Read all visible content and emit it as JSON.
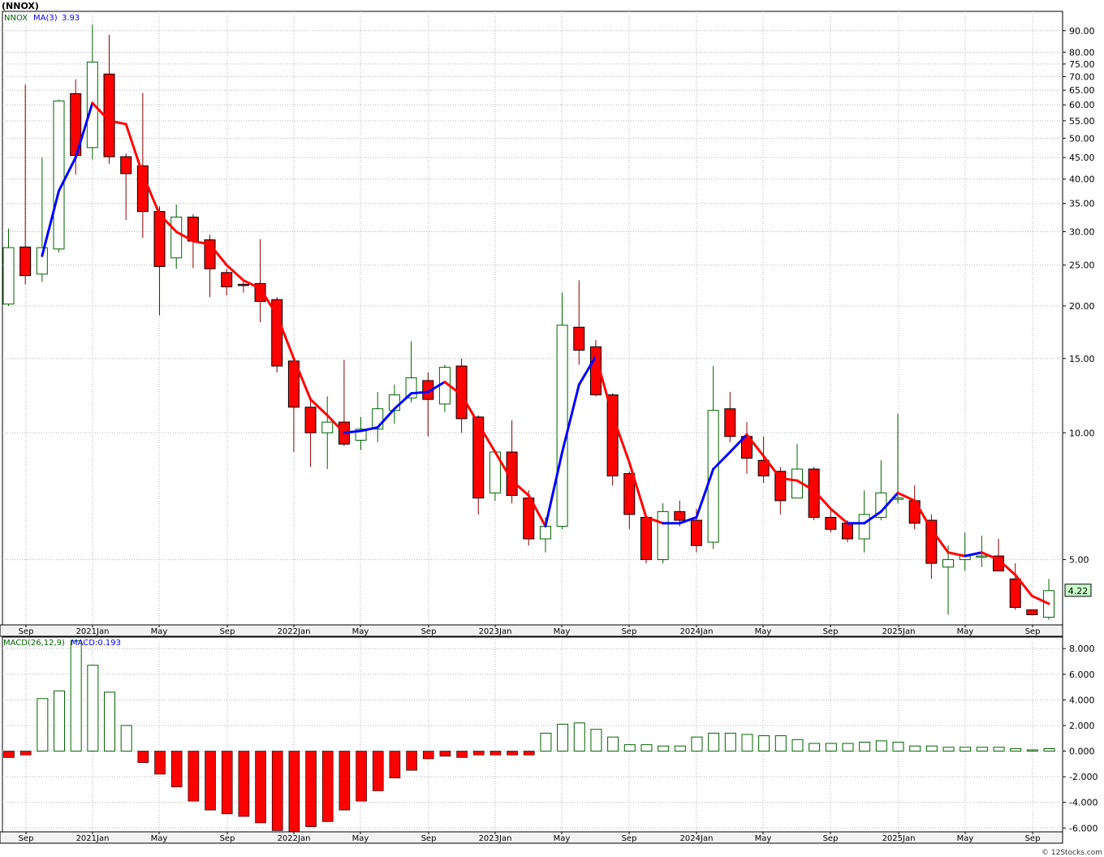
{
  "title": "(NNOX)",
  "watermark": "© 12Stocks.com",
  "colors": {
    "down": "#ff0000",
    "up_outline": "#006400",
    "ma_up": "#0000ff",
    "ma_down": "#ff0000",
    "grid": "#b4b4b4",
    "price_label_bg": "#c8ffc8"
  },
  "chart_data": [
    {
      "type": "candlestick",
      "legend": {
        "symbol": "NNOX",
        "ma_label": "MA(3)",
        "ma_value": "3.93"
      },
      "scale": "log",
      "ylim": [
        3.5,
        100
      ],
      "y_ticks": [
        "90.00",
        "80.00",
        "75.00",
        "70.00",
        "65.00",
        "60.00",
        "55.00",
        "50.00",
        "45.00",
        "40.00",
        "35.00",
        "30.00",
        "25.00",
        "20.00",
        "15.00",
        "10.00",
        "5.00"
      ],
      "last_price_label": "4.22",
      "x_ticks": [
        "Sep",
        "2021Jan",
        "May",
        "Sep",
        "2022Jan",
        "May",
        "Sep",
        "2023Jan",
        "May",
        "Sep",
        "2024Jan",
        "May",
        "Sep",
        "2025Jan",
        "May",
        "Sep"
      ],
      "candles": [
        {
          "o": 20.2,
          "h": 30.5,
          "l": 20.0,
          "c": 27.5
        },
        {
          "o": 27.6,
          "h": 67.0,
          "l": 22.5,
          "c": 23.6
        },
        {
          "o": 23.8,
          "h": 45.0,
          "l": 22.8,
          "c": 27.5
        },
        {
          "o": 27.3,
          "h": 61.7,
          "l": 26.8,
          "c": 61.3
        },
        {
          "o": 63.8,
          "h": 69.0,
          "l": 41.0,
          "c": 45.5
        },
        {
          "o": 47.5,
          "h": 93.0,
          "l": 44.5,
          "c": 75.8
        },
        {
          "o": 71.0,
          "h": 88.0,
          "l": 43.5,
          "c": 45.2
        },
        {
          "o": 45.2,
          "h": 46.0,
          "l": 32.0,
          "c": 41.2
        },
        {
          "o": 43.0,
          "h": 64.0,
          "l": 29.0,
          "c": 33.5
        },
        {
          "o": 33.5,
          "h": 34.5,
          "l": 19.0,
          "c": 24.8
        },
        {
          "o": 26.0,
          "h": 34.8,
          "l": 24.5,
          "c": 32.5
        },
        {
          "o": 32.5,
          "h": 33.0,
          "l": 24.6,
          "c": 28.5
        },
        {
          "o": 28.7,
          "h": 29.5,
          "l": 21.0,
          "c": 24.5
        },
        {
          "o": 24.0,
          "h": 24.5,
          "l": 21.2,
          "c": 22.2
        },
        {
          "o": 22.5,
          "h": 23.0,
          "l": 21.5,
          "c": 22.4
        },
        {
          "o": 22.6,
          "h": 28.8,
          "l": 18.3,
          "c": 20.5
        },
        {
          "o": 20.7,
          "h": 21.0,
          "l": 13.9,
          "c": 14.4
        },
        {
          "o": 14.8,
          "h": 15.0,
          "l": 9.0,
          "c": 11.5
        },
        {
          "o": 11.5,
          "h": 12.0,
          "l": 8.3,
          "c": 10.0
        },
        {
          "o": 10.0,
          "h": 12.2,
          "l": 8.2,
          "c": 10.6
        },
        {
          "o": 10.6,
          "h": 14.9,
          "l": 9.3,
          "c": 9.4
        },
        {
          "o": 9.6,
          "h": 10.9,
          "l": 9.1,
          "c": 10.2
        },
        {
          "o": 10.2,
          "h": 12.5,
          "l": 9.5,
          "c": 11.4
        },
        {
          "o": 11.3,
          "h": 13.0,
          "l": 10.5,
          "c": 12.3
        },
        {
          "o": 12.1,
          "h": 16.5,
          "l": 11.8,
          "c": 13.5
        },
        {
          "o": 13.3,
          "h": 13.9,
          "l": 9.8,
          "c": 12.0
        },
        {
          "o": 11.7,
          "h": 14.5,
          "l": 11.2,
          "c": 14.3
        },
        {
          "o": 14.4,
          "h": 15.0,
          "l": 10.0,
          "c": 10.8
        },
        {
          "o": 10.9,
          "h": 11.0,
          "l": 6.4,
          "c": 7.0
        },
        {
          "o": 7.2,
          "h": 9.0,
          "l": 6.9,
          "c": 9.0
        },
        {
          "o": 9.0,
          "h": 10.7,
          "l": 6.8,
          "c": 7.1
        },
        {
          "o": 7.0,
          "h": 7.3,
          "l": 5.4,
          "c": 5.6
        },
        {
          "o": 5.6,
          "h": 6.3,
          "l": 5.2,
          "c": 6.0
        },
        {
          "o": 6.0,
          "h": 21.5,
          "l": 5.9,
          "c": 18.0
        },
        {
          "o": 17.8,
          "h": 23.0,
          "l": 14.5,
          "c": 15.7
        },
        {
          "o": 16.0,
          "h": 16.6,
          "l": 12.2,
          "c": 12.3
        },
        {
          "o": 12.3,
          "h": 12.4,
          "l": 7.5,
          "c": 7.9
        },
        {
          "o": 8.0,
          "h": 8.1,
          "l": 5.9,
          "c": 6.4
        },
        {
          "o": 6.3,
          "h": 6.3,
          "l": 4.9,
          "c": 5.0
        },
        {
          "o": 5.0,
          "h": 6.8,
          "l": 4.9,
          "c": 6.5
        },
        {
          "o": 6.5,
          "h": 6.9,
          "l": 6.0,
          "c": 6.2
        },
        {
          "o": 6.2,
          "h": 6.6,
          "l": 5.2,
          "c": 5.4
        },
        {
          "o": 5.5,
          "h": 14.4,
          "l": 5.3,
          "c": 11.3
        },
        {
          "o": 11.4,
          "h": 12.5,
          "l": 9.5,
          "c": 9.8
        },
        {
          "o": 9.8,
          "h": 10.6,
          "l": 8.0,
          "c": 8.7
        },
        {
          "o": 8.6,
          "h": 9.8,
          "l": 7.6,
          "c": 7.9
        },
        {
          "o": 8.1,
          "h": 8.3,
          "l": 6.4,
          "c": 6.9
        },
        {
          "o": 7.0,
          "h": 9.4,
          "l": 7.0,
          "c": 8.2
        },
        {
          "o": 8.2,
          "h": 8.3,
          "l": 6.2,
          "c": 6.3
        },
        {
          "o": 6.3,
          "h": 6.6,
          "l": 5.8,
          "c": 5.9
        },
        {
          "o": 6.1,
          "h": 6.2,
          "l": 5.5,
          "c": 5.6
        },
        {
          "o": 5.6,
          "h": 7.3,
          "l": 5.2,
          "c": 6.4
        },
        {
          "o": 6.3,
          "h": 8.6,
          "l": 6.2,
          "c": 7.2
        },
        {
          "o": 7.0,
          "h": 11.1,
          "l": 6.8,
          "c": 7.0
        },
        {
          "o": 6.9,
          "h": 7.5,
          "l": 5.9,
          "c": 6.1
        },
        {
          "o": 6.2,
          "h": 6.4,
          "l": 4.5,
          "c": 4.9
        },
        {
          "o": 4.8,
          "h": 5.4,
          "l": 3.7,
          "c": 5.0
        },
        {
          "o": 5.0,
          "h": 5.8,
          "l": 4.7,
          "c": 5.1
        },
        {
          "o": 5.1,
          "h": 5.7,
          "l": 4.8,
          "c": 5.1
        },
        {
          "o": 5.1,
          "h": 5.6,
          "l": 4.7,
          "c": 4.7
        },
        {
          "o": 4.5,
          "h": 4.9,
          "l": 3.8,
          "c": 3.85
        },
        {
          "o": 3.8,
          "h": 3.8,
          "l": 3.7,
          "c": 3.7
        },
        {
          "o": 3.65,
          "h": 4.5,
          "l": 3.6,
          "c": 4.22
        }
      ],
      "ma": [
        null,
        null,
        26.3,
        37.5,
        45.0,
        60.6,
        55.0,
        54.0,
        41.0,
        33.0,
        30.0,
        28.5,
        28.0,
        25.0,
        23.0,
        22.0,
        19.0,
        15.0,
        12.0,
        11.0,
        10.0,
        10.1,
        10.3,
        11.4,
        12.4,
        12.5,
        13.2,
        12.3,
        10.5,
        9.0,
        7.7,
        7.1,
        6.0,
        9.0,
        13.0,
        15.2,
        11.0,
        8.5,
        6.3,
        6.1,
        6.1,
        6.3,
        8.2,
        9.0,
        9.9,
        8.8,
        7.8,
        7.7,
        7.3,
        6.6,
        6.1,
        6.1,
        6.5,
        7.2,
        6.9,
        5.9,
        5.2,
        5.1,
        5.2,
        5.0,
        4.6,
        4.1,
        3.93
      ]
    },
    {
      "type": "bar",
      "legend": {
        "name": "MACD(26,12,9)",
        "value_label": "MACD:0.193"
      },
      "ylim": [
        -6.3,
        8.9
      ],
      "y_ticks": [
        "8.000",
        "6.000",
        "4.000",
        "2.000",
        "0.000",
        "-2.000",
        "-4.000",
        "-6.000"
      ],
      "x_ticks": [
        "Sep",
        "2021Jan",
        "May",
        "Sep",
        "2022Jan",
        "May",
        "Sep",
        "2023Jan",
        "May",
        "Sep",
        "2024Jan",
        "May",
        "Sep",
        "2025Jan",
        "May",
        "Sep"
      ],
      "values": [
        -0.5,
        -0.3,
        4.1,
        4.7,
        8.6,
        6.7,
        4.6,
        2.0,
        -0.9,
        -1.8,
        -2.8,
        -3.9,
        -4.6,
        -4.9,
        -5.1,
        -5.6,
        -6.2,
        -6.3,
        -5.9,
        -5.5,
        -4.6,
        -3.9,
        -3.1,
        -2.1,
        -1.5,
        -0.6,
        -0.4,
        -0.5,
        -0.3,
        -0.3,
        -0.3,
        -0.3,
        1.4,
        2.1,
        2.2,
        1.7,
        1.1,
        0.5,
        0.5,
        0.4,
        0.4,
        1.1,
        1.4,
        1.4,
        1.3,
        1.2,
        1.2,
        0.9,
        0.6,
        0.6,
        0.6,
        0.7,
        0.8,
        0.7,
        0.4,
        0.4,
        0.3,
        0.3,
        0.3,
        0.3,
        0.2,
        0.1,
        0.193
      ]
    }
  ]
}
